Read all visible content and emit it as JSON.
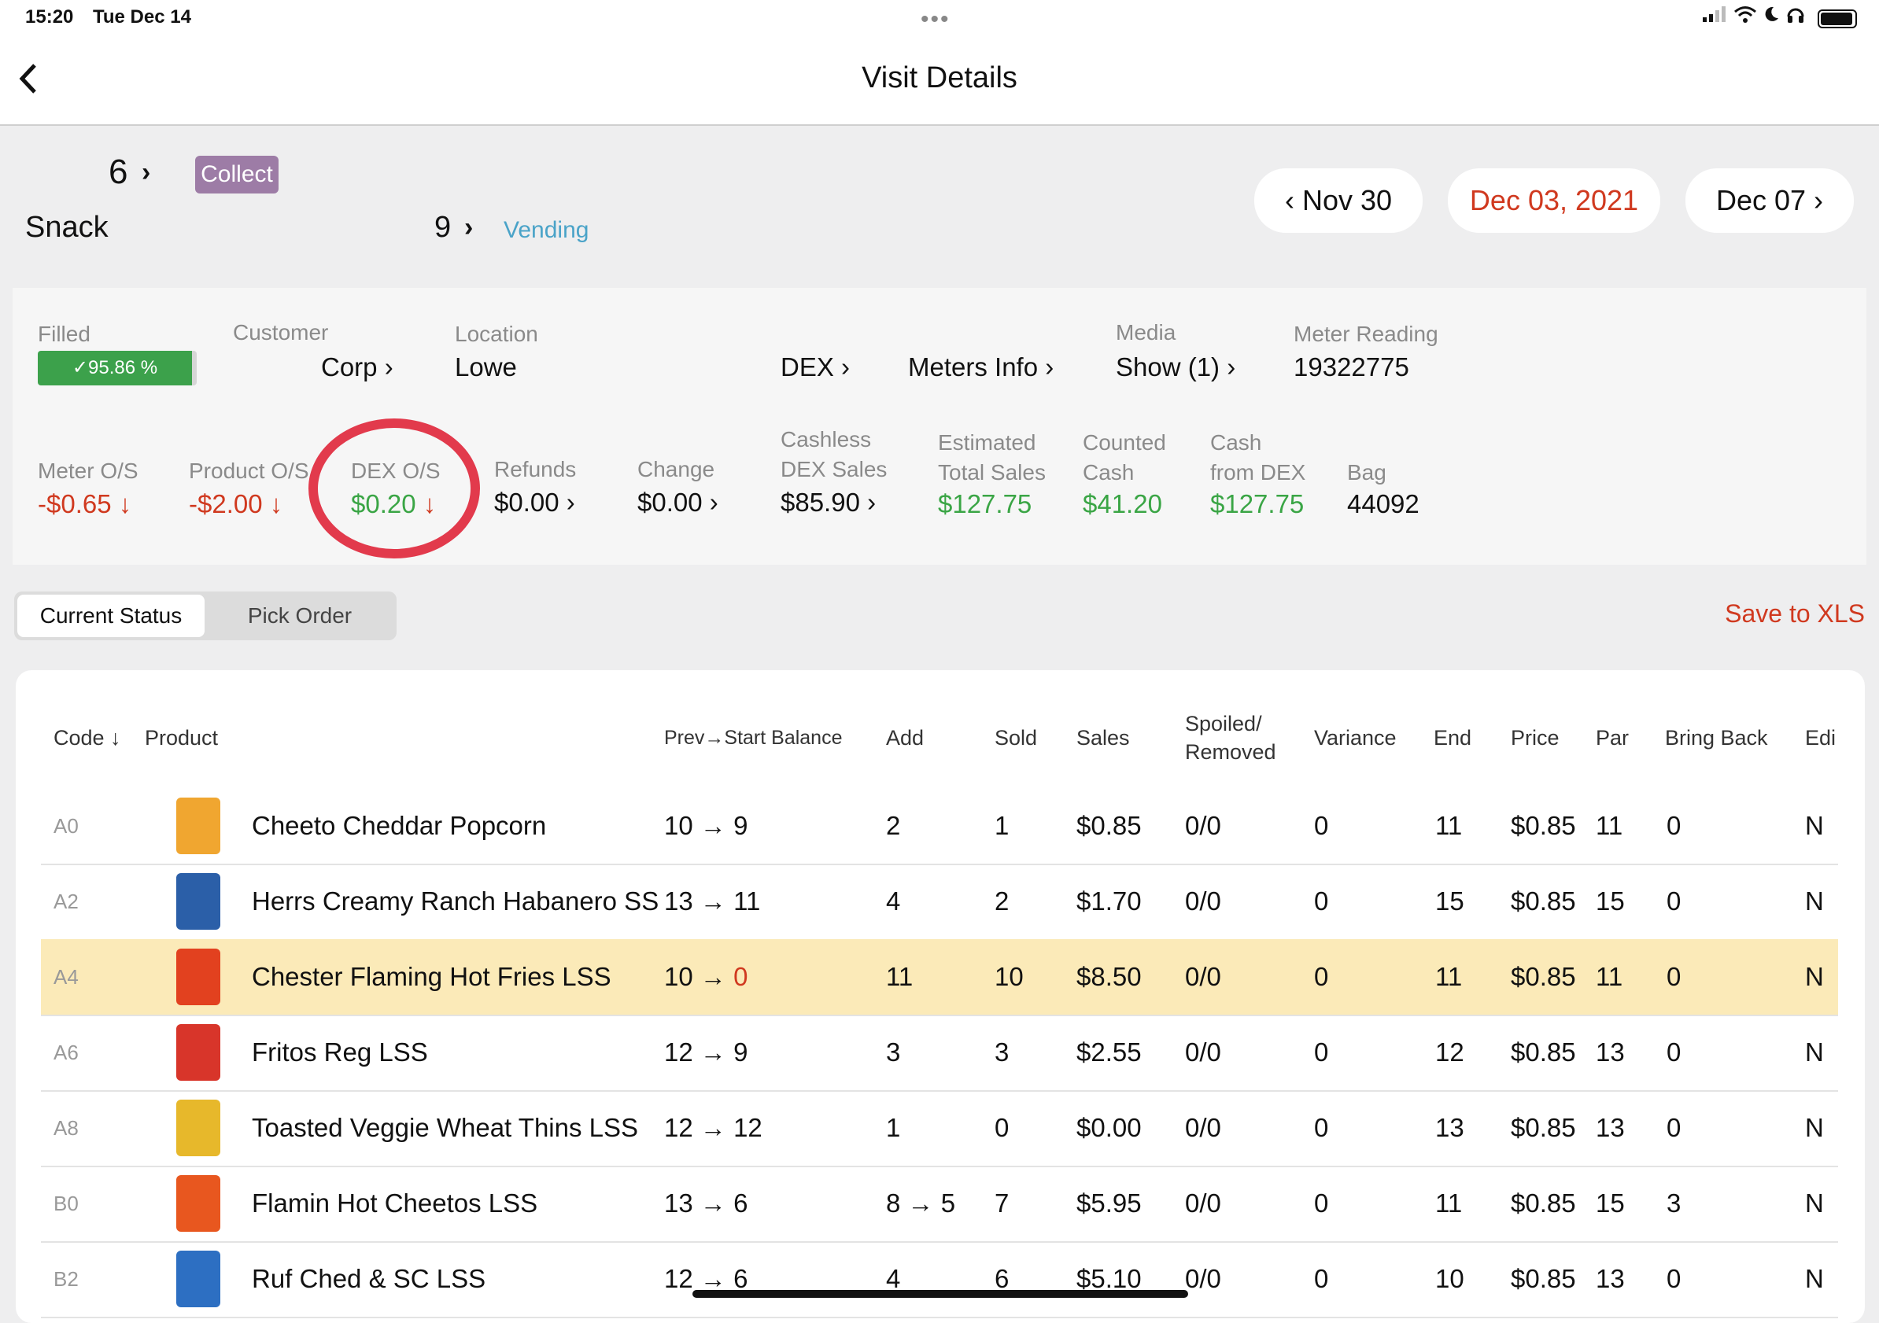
{
  "status_bar": {
    "time": "15:20",
    "date": "Tue Dec 14",
    "dots": "•••"
  },
  "nav": {
    "back_icon": "chevron-left-icon",
    "title": "Visit Details"
  },
  "header": {
    "route_number": "6",
    "collect_label": "Collect",
    "machine_name": "Snack",
    "machine_number": "9",
    "machine_type": "Vending",
    "prev_date": "Nov 30",
    "current_date": "Dec 03, 2021",
    "next_date": "Dec 07"
  },
  "info": {
    "filled": {
      "label": "Filled",
      "value": "95.86 %",
      "check": "✓"
    },
    "customer": {
      "label": "Customer",
      "value": "Corp"
    },
    "location": {
      "label": "Location",
      "value": "Lowe"
    },
    "dex": {
      "value": "DEX"
    },
    "meters_info": {
      "value": "Meters Info"
    },
    "media": {
      "label": "Media",
      "value": "Show (1)"
    },
    "meter_reading": {
      "label": "Meter Reading",
      "value": "19322775"
    },
    "meter_os": {
      "label": "Meter O/S",
      "value": "-$0.65"
    },
    "product_os": {
      "label": "Product O/S",
      "value": "-$2.00"
    },
    "dex_os": {
      "label": "DEX O/S",
      "value": "$0.20"
    },
    "refunds": {
      "label": "Refunds",
      "value": "$0.00"
    },
    "change": {
      "label": "Change",
      "value": "$0.00"
    },
    "cashless": {
      "label1": "Cashless",
      "label2": "DEX Sales",
      "value": "$85.90"
    },
    "estimated": {
      "label1": "Estimated",
      "label2": "Total Sales",
      "value": "$127.75"
    },
    "counted": {
      "label1": "Counted",
      "label2": "Cash",
      "value": "$41.20"
    },
    "cash_dex": {
      "label1": "Cash",
      "label2": "from DEX",
      "value": "$127.75"
    },
    "bag": {
      "label": "Bag",
      "value": "44092"
    }
  },
  "tabs": {
    "current": "Current Status",
    "pick": "Pick Order",
    "save": "Save to XLS"
  },
  "table": {
    "headers": {
      "code": "Code ↓",
      "product": "Product",
      "prev": "Prev→Start Balance",
      "add": "Add",
      "sold": "Sold",
      "sales": "Sales",
      "spoiled1": "Spoiled/",
      "spoiled2": "Removed",
      "variance": "Variance",
      "end": "End",
      "price": "Price",
      "par": "Par",
      "bring_back": "Bring Back",
      "edit": "Edi"
    },
    "rows": [
      {
        "code": "A0",
        "product": "Cheeto Cheddar Popcorn",
        "prev": "10",
        "start": "9",
        "add": "2",
        "sold": "1",
        "sales": "$0.85",
        "spoiled": "0/0",
        "variance": "0",
        "end": "11",
        "price": "$0.85",
        "par": "11",
        "bring_back": "0",
        "edit": "N"
      },
      {
        "code": "A2",
        "product": "Herrs Creamy Ranch Habanero SS",
        "prev": "13",
        "start": "11",
        "add": "4",
        "sold": "2",
        "sales": "$1.70",
        "spoiled": "0/0",
        "variance": "0",
        "end": "15",
        "price": "$0.85",
        "par": "15",
        "bring_back": "0",
        "edit": "N"
      },
      {
        "code": "A4",
        "product": "Chester Flaming Hot Fries LSS",
        "prev": "10",
        "start": "0",
        "add": "11",
        "sold": "10",
        "sales": "$8.50",
        "spoiled": "0/0",
        "variance": "0",
        "end": "11",
        "price": "$0.85",
        "par": "11",
        "bring_back": "0",
        "edit": "N"
      },
      {
        "code": "A6",
        "product": "Fritos Reg LSS",
        "prev": "12",
        "start": "9",
        "add": "3",
        "sold": "3",
        "sales": "$2.55",
        "spoiled": "0/0",
        "variance": "0",
        "end": "12",
        "price": "$0.85",
        "par": "13",
        "bring_back": "0",
        "edit": "N"
      },
      {
        "code": "A8",
        "product": "Toasted Veggie Wheat Thins LSS",
        "prev": "12",
        "start": "12",
        "add": "1",
        "sold": "0",
        "sales": "$0.00",
        "spoiled": "0/0",
        "variance": "0",
        "end": "13",
        "price": "$0.85",
        "par": "13",
        "bring_back": "0",
        "edit": "N"
      },
      {
        "code": "B0",
        "product": "Flamin Hot Cheetos LSS",
        "prev": "13",
        "start": "6",
        "add": "8 → 5",
        "sold": "7",
        "sales": "$5.95",
        "spoiled": "0/0",
        "variance": "0",
        "end": "11",
        "price": "$0.85",
        "par": "15",
        "bring_back": "3",
        "edit": "N"
      },
      {
        "code": "B2",
        "product": "Ruf Ched & SC LSS",
        "prev": "12",
        "start": "6",
        "add": "4",
        "sold": "6",
        "sales": "$5.10",
        "spoiled": "0/0",
        "variance": "0",
        "end": "10",
        "price": "$0.85",
        "par": "13",
        "bring_back": "0",
        "edit": "N"
      }
    ]
  }
}
